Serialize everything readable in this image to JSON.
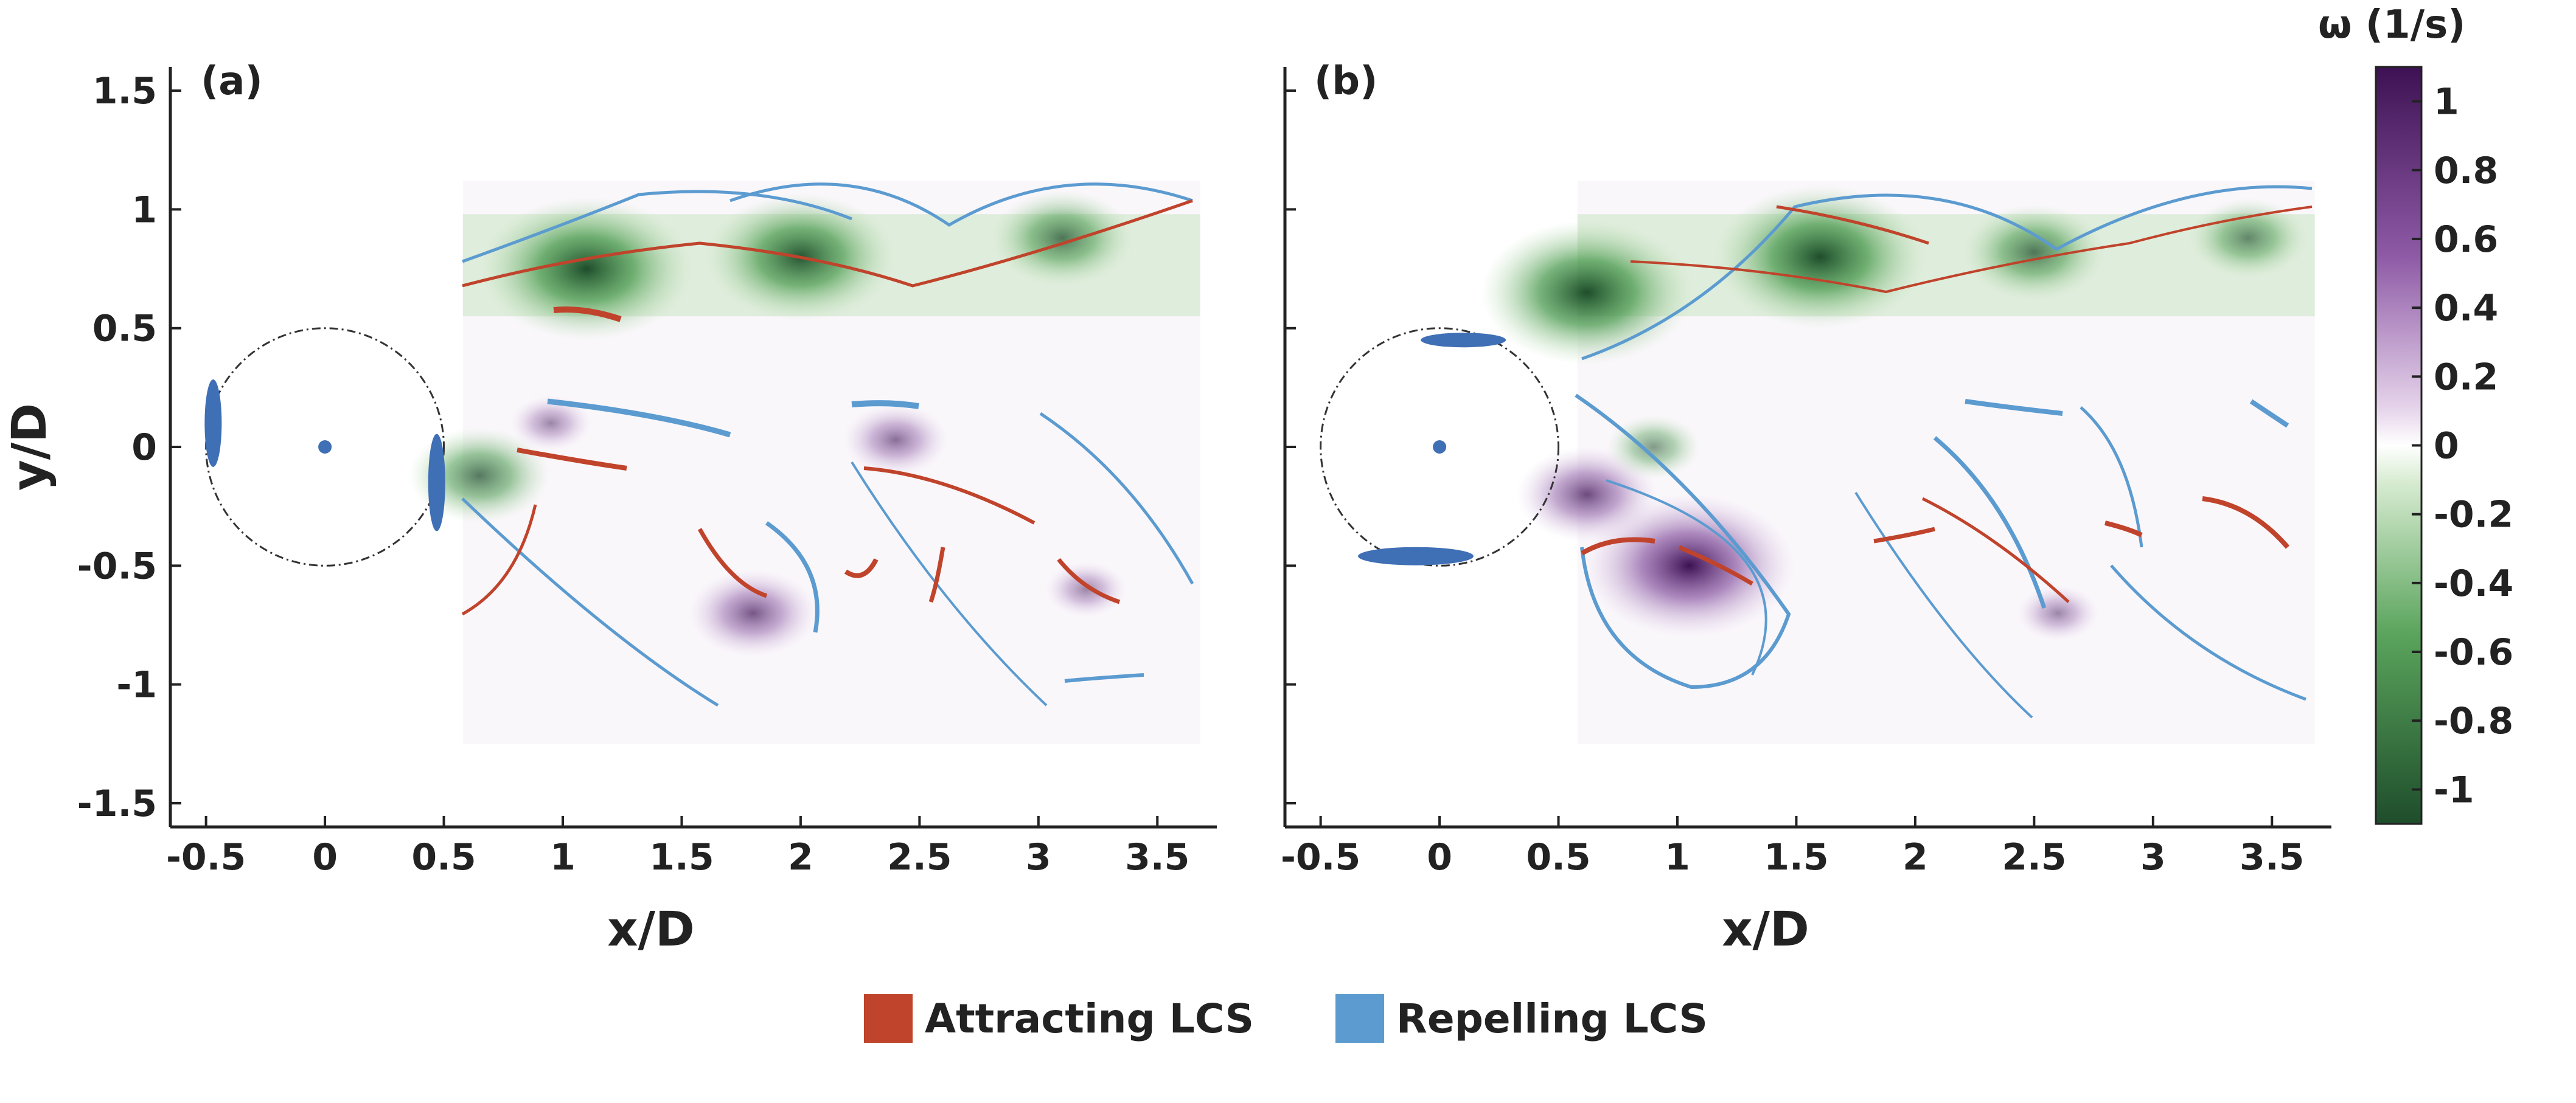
{
  "chart_data": {
    "type": "heatmap",
    "description_note": "vorticity field with overlaid Lagrangian coherent structures",
    "panels": [
      {
        "label": "(a)",
        "xlabel": "x/D",
        "ylabel": "y/D",
        "xlim": [
          -0.65,
          3.75
        ],
        "ylim": [
          -1.6,
          1.6
        ],
        "xticks": [
          "-0.5",
          "0",
          "0.5",
          "1",
          "1.5",
          "2",
          "2.5",
          "3",
          "3.5"
        ],
        "xtick_values": [
          -0.5,
          0,
          0.5,
          1,
          1.5,
          2,
          2.5,
          3,
          3.5
        ],
        "yticks": [
          "1.5",
          "1",
          "0.5",
          "0",
          "-0.5",
          "-1",
          "-1.5"
        ],
        "ytick_values": [
          1.5,
          1,
          0.5,
          0,
          -0.5,
          -1,
          -1.5
        ],
        "cylinder": {
          "center": [
            0,
            0
          ],
          "radius": 0.5
        },
        "vortices": [
          {
            "x": 1.1,
            "y": 0.75,
            "w": -0.9
          },
          {
            "x": 2.0,
            "y": 0.8,
            "w": -0.8
          },
          {
            "x": 3.1,
            "y": 0.88,
            "w": -0.6
          },
          {
            "x": 0.65,
            "y": -0.12,
            "w": -0.6
          },
          {
            "x": 1.8,
            "y": -0.7,
            "w": 0.55
          },
          {
            "x": 2.4,
            "y": 0.03,
            "w": 0.45
          },
          {
            "x": 3.2,
            "y": -0.6,
            "w": 0.35
          },
          {
            "x": 0.95,
            "y": 0.1,
            "w": 0.35
          }
        ]
      },
      {
        "label": "(b)",
        "xlabel": "x/D",
        "ylabel": "",
        "xlim": [
          -0.65,
          3.75
        ],
        "ylim": [
          -1.6,
          1.6
        ],
        "xticks": [
          "-0.5",
          "0",
          "0.5",
          "1",
          "1.5",
          "2",
          "2.5",
          "3",
          "3.5"
        ],
        "xtick_values": [
          -0.5,
          0,
          0.5,
          1,
          1.5,
          2,
          2.5,
          3,
          3.5
        ],
        "yticks": [],
        "ytick_values": [
          1.5,
          1,
          0.5,
          0,
          -0.5,
          -1,
          -1.5
        ],
        "cylinder": {
          "center": [
            0,
            0
          ],
          "radius": 0.5
        },
        "vortices": [
          {
            "x": 0.62,
            "y": 0.65,
            "w": -0.9
          },
          {
            "x": 1.6,
            "y": 0.8,
            "w": -0.9
          },
          {
            "x": 2.5,
            "y": 0.82,
            "w": -0.6
          },
          {
            "x": 3.4,
            "y": 0.88,
            "w": -0.5
          },
          {
            "x": 1.05,
            "y": -0.5,
            "w": 0.9
          },
          {
            "x": 0.62,
            "y": -0.2,
            "w": 0.6
          },
          {
            "x": 2.6,
            "y": -0.7,
            "w": 0.35
          },
          {
            "x": 0.9,
            "y": 0.0,
            "w": -0.4
          }
        ]
      }
    ],
    "colorbar": {
      "title": "ω (1/s)",
      "range": [
        -1.1,
        1.1
      ],
      "ticks": [
        "1",
        "0.8",
        "0.6",
        "0.4",
        "0.2",
        "0",
        "-0.2",
        "-0.4",
        "-0.6",
        "-0.8",
        "-1"
      ],
      "tick_values": [
        1,
        0.8,
        0.6,
        0.4,
        0.2,
        0,
        -0.2,
        -0.4,
        -0.6,
        -0.8,
        -1
      ],
      "colors": {
        "negative": "#1e4d2b",
        "zero": "#ffffff",
        "positive": "#3d1153"
      }
    },
    "legend": [
      {
        "label": "Attracting LCS",
        "color": "#c0432b"
      },
      {
        "label": "Repelling LCS",
        "color": "#5b9bd0"
      }
    ]
  }
}
